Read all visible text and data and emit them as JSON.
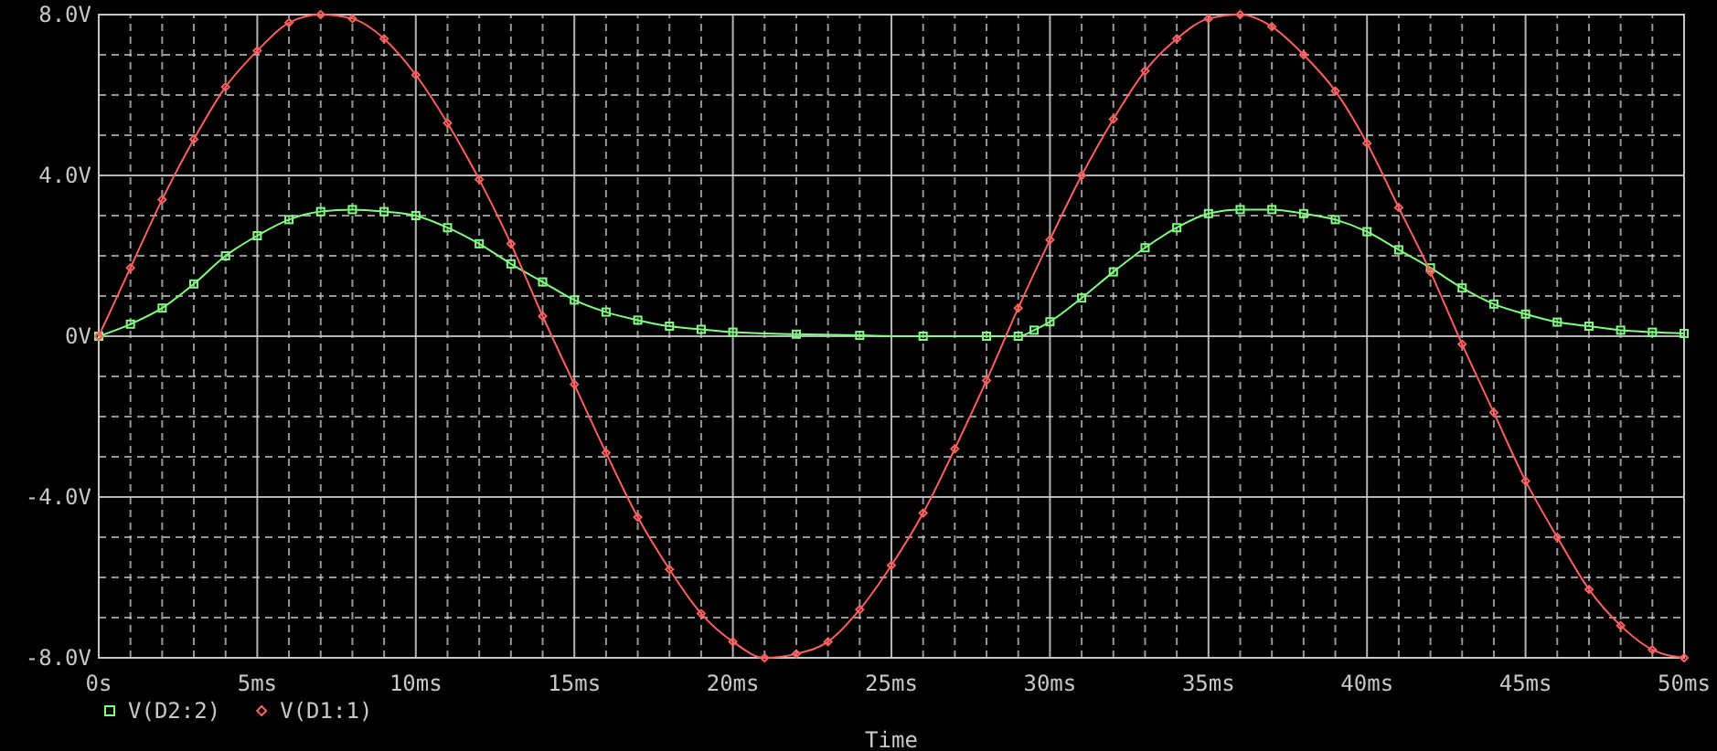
{
  "chart_data": {
    "type": "line",
    "xlabel": "Time",
    "xlim": [
      0,
      50
    ],
    "ylim": [
      -8,
      8
    ],
    "xticks": [
      {
        "value": 0,
        "label": "0s"
      },
      {
        "value": 1,
        "label": null
      },
      {
        "value": 2,
        "label": null
      },
      {
        "value": 3,
        "label": null
      },
      {
        "value": 4,
        "label": null
      },
      {
        "value": 5,
        "label": "5ms"
      },
      {
        "value": 6,
        "label": null
      },
      {
        "value": 7,
        "label": null
      },
      {
        "value": 8,
        "label": null
      },
      {
        "value": 9,
        "label": null
      },
      {
        "value": 10,
        "label": "10ms"
      },
      {
        "value": 11,
        "label": null
      },
      {
        "value": 12,
        "label": null
      },
      {
        "value": 13,
        "label": null
      },
      {
        "value": 14,
        "label": null
      },
      {
        "value": 15,
        "label": "15ms"
      },
      {
        "value": 16,
        "label": null
      },
      {
        "value": 17,
        "label": null
      },
      {
        "value": 18,
        "label": null
      },
      {
        "value": 19,
        "label": null
      },
      {
        "value": 20,
        "label": "20ms"
      },
      {
        "value": 21,
        "label": null
      },
      {
        "value": 22,
        "label": null
      },
      {
        "value": 23,
        "label": null
      },
      {
        "value": 24,
        "label": null
      },
      {
        "value": 25,
        "label": "25ms"
      },
      {
        "value": 26,
        "label": null
      },
      {
        "value": 27,
        "label": null
      },
      {
        "value": 28,
        "label": null
      },
      {
        "value": 29,
        "label": null
      },
      {
        "value": 30,
        "label": "30ms"
      },
      {
        "value": 31,
        "label": null
      },
      {
        "value": 32,
        "label": null
      },
      {
        "value": 33,
        "label": null
      },
      {
        "value": 34,
        "label": null
      },
      {
        "value": 35,
        "label": "35ms"
      },
      {
        "value": 36,
        "label": null
      },
      {
        "value": 37,
        "label": null
      },
      {
        "value": 38,
        "label": null
      },
      {
        "value": 39,
        "label": null
      },
      {
        "value": 40,
        "label": "40ms"
      },
      {
        "value": 41,
        "label": null
      },
      {
        "value": 42,
        "label": null
      },
      {
        "value": 43,
        "label": null
      },
      {
        "value": 44,
        "label": null
      },
      {
        "value": 45,
        "label": "45ms"
      },
      {
        "value": 46,
        "label": null
      },
      {
        "value": 47,
        "label": null
      },
      {
        "value": 48,
        "label": null
      },
      {
        "value": 49,
        "label": null
      },
      {
        "value": 50,
        "label": "50ms"
      }
    ],
    "yticks": [
      {
        "value": -8,
        "label": "-8.0V"
      },
      {
        "value": -7,
        "label": null
      },
      {
        "value": -6,
        "label": null
      },
      {
        "value": -5,
        "label": null
      },
      {
        "value": -4,
        "label": "-4.0V"
      },
      {
        "value": -3,
        "label": null
      },
      {
        "value": -2,
        "label": null
      },
      {
        "value": -1,
        "label": null
      },
      {
        "value": 0,
        "label": "0V"
      },
      {
        "value": 1,
        "label": null
      },
      {
        "value": 2,
        "label": null
      },
      {
        "value": 3,
        "label": null
      },
      {
        "value": 4,
        "label": "4.0V"
      },
      {
        "value": 5,
        "label": null
      },
      {
        "value": 6,
        "label": null
      },
      {
        "value": 7,
        "label": null
      },
      {
        "value": 8,
        "label": "8.0V"
      }
    ],
    "grid": true,
    "legend": "bottom left",
    "series": [
      {
        "name": "V(D2:2)",
        "color": "#80ff80",
        "marker": "square",
        "x": [
          0,
          1,
          2,
          3,
          4,
          5,
          6,
          7,
          8,
          9,
          10,
          11,
          12,
          13,
          14,
          15,
          16,
          17,
          18,
          19,
          20,
          22,
          24,
          26,
          28,
          29,
          29.5,
          30,
          31,
          32,
          33,
          34,
          35,
          36,
          37,
          38,
          39,
          40,
          41,
          42,
          43,
          44,
          45,
          46,
          47,
          48,
          49,
          50
        ],
        "values": [
          0,
          0.3,
          0.7,
          1.3,
          2.0,
          2.5,
          2.9,
          3.1,
          3.15,
          3.1,
          3.0,
          2.7,
          2.3,
          1.8,
          1.35,
          0.9,
          0.6,
          0.4,
          0.25,
          0.17,
          0.1,
          0.05,
          0.02,
          0,
          0,
          0,
          0.15,
          0.36,
          0.95,
          1.6,
          2.2,
          2.7,
          3.05,
          3.15,
          3.15,
          3.05,
          2.9,
          2.6,
          2.15,
          1.7,
          1.2,
          0.8,
          0.55,
          0.35,
          0.25,
          0.15,
          0.1,
          0.07
        ]
      },
      {
        "name": "V(D1:1)",
        "color": "#ff6060",
        "marker": "diamond",
        "x": [
          0,
          1,
          2,
          3,
          4,
          5,
          6,
          7,
          8,
          9,
          10,
          11,
          12,
          13,
          14,
          15,
          16,
          17,
          18,
          19,
          20,
          21,
          22,
          23,
          24,
          25,
          26,
          27,
          28,
          29,
          30,
          31,
          32,
          33,
          34,
          35,
          36,
          37,
          38,
          39,
          40,
          41,
          42,
          43,
          44,
          45,
          46,
          47,
          48,
          49,
          50
        ],
        "values": [
          0,
          1.7,
          3.4,
          4.9,
          6.2,
          7.1,
          7.8,
          8.0,
          7.9,
          7.4,
          6.5,
          5.3,
          3.9,
          2.3,
          0.5,
          -1.2,
          -2.9,
          -4.5,
          -5.8,
          -6.9,
          -7.6,
          -8.0,
          -7.9,
          -7.6,
          -6.8,
          -5.7,
          -4.4,
          -2.8,
          -1.1,
          0.7,
          2.4,
          4.0,
          5.4,
          6.6,
          7.4,
          7.9,
          8.0,
          7.7,
          7.0,
          6.1,
          4.8,
          3.2,
          1.6,
          -0.2,
          -1.9,
          -3.6,
          -5.0,
          -6.3,
          -7.2,
          -7.8,
          -8.0
        ]
      }
    ]
  }
}
